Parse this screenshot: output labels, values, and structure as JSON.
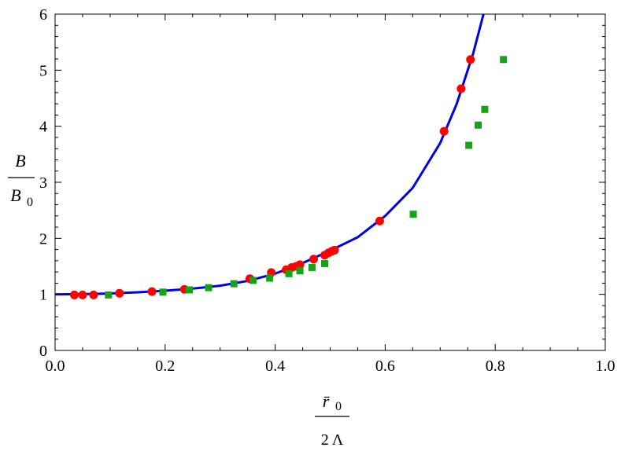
{
  "chart_data": {
    "type": "scatter",
    "title": "",
    "xlabel": {
      "numerator": "r̄",
      "numerator_sub": "0",
      "denominator": "2 Λ"
    },
    "ylabel": {
      "numerator": "B",
      "denominator": "B",
      "denominator_sub": "0"
    },
    "xlim": [
      0.0,
      1.0
    ],
    "ylim": [
      0,
      6
    ],
    "x_ticks": [
      "0.0",
      "0.2",
      "0.4",
      "0.6",
      "0.8",
      "1.0"
    ],
    "y_ticks": [
      "0",
      "1",
      "2",
      "3",
      "4",
      "5",
      "6"
    ],
    "grid": false,
    "legend": "none",
    "colors": {
      "curve": "#0000e6",
      "red_points": "#ff0000",
      "green_points": "#17a317"
    },
    "series": [
      {
        "kind": "line",
        "color_key": "curve",
        "points": [
          [
            0.0,
            1.0
          ],
          [
            0.05,
            1.004
          ],
          [
            0.1,
            1.016
          ],
          [
            0.15,
            1.037
          ],
          [
            0.2,
            1.065
          ],
          [
            0.25,
            1.103
          ],
          [
            0.3,
            1.155
          ],
          [
            0.35,
            1.24
          ],
          [
            0.4,
            1.37
          ],
          [
            0.45,
            1.56
          ],
          [
            0.5,
            1.78
          ],
          [
            0.55,
            2.02
          ],
          [
            0.6,
            2.4
          ],
          [
            0.65,
            2.9
          ],
          [
            0.7,
            3.7
          ],
          [
            0.73,
            4.4
          ],
          [
            0.76,
            5.3
          ],
          [
            0.78,
            6.05
          ]
        ]
      },
      {
        "kind": "scatter",
        "marker": "circle",
        "color_key": "red_points",
        "points": [
          [
            0.035,
            0.99
          ],
          [
            0.05,
            0.99
          ],
          [
            0.07,
            0.99
          ],
          [
            0.117,
            1.02
          ],
          [
            0.176,
            1.05
          ],
          [
            0.235,
            1.09
          ],
          [
            0.354,
            1.28
          ],
          [
            0.393,
            1.39
          ],
          [
            0.42,
            1.44
          ],
          [
            0.43,
            1.48
          ],
          [
            0.438,
            1.5
          ],
          [
            0.445,
            1.53
          ],
          [
            0.47,
            1.63
          ],
          [
            0.49,
            1.7
          ],
          [
            0.497,
            1.74
          ],
          [
            0.503,
            1.77
          ],
          [
            0.508,
            1.79
          ],
          [
            0.59,
            2.31
          ],
          [
            0.707,
            3.91
          ],
          [
            0.738,
            4.67
          ],
          [
            0.755,
            5.19
          ]
        ]
      },
      {
        "kind": "scatter",
        "marker": "square",
        "color_key": "green_points",
        "points": [
          [
            0.097,
            0.99
          ],
          [
            0.196,
            1.04
          ],
          [
            0.244,
            1.08
          ],
          [
            0.279,
            1.12
          ],
          [
            0.325,
            1.19
          ],
          [
            0.36,
            1.25
          ],
          [
            0.39,
            1.29
          ],
          [
            0.425,
            1.37
          ],
          [
            0.445,
            1.42
          ],
          [
            0.467,
            1.48
          ],
          [
            0.49,
            1.55
          ],
          [
            0.651,
            2.43
          ],
          [
            0.752,
            3.66
          ],
          [
            0.769,
            4.02
          ],
          [
            0.781,
            4.3
          ],
          [
            0.815,
            5.19
          ]
        ]
      }
    ]
  }
}
